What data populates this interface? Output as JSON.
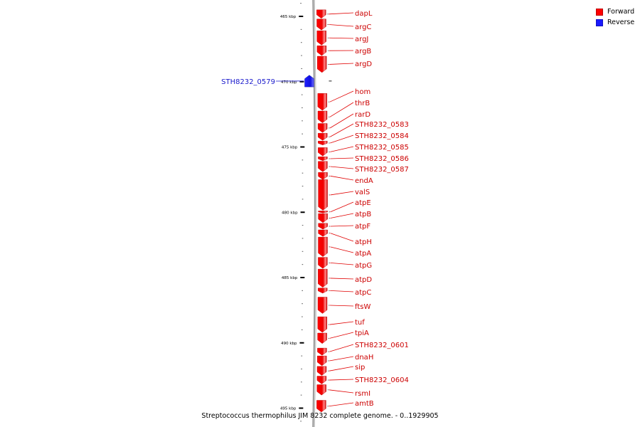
{
  "legend": {
    "forward_label": "Forward",
    "reverse_label": "Reverse",
    "forward_color": "#ff0000",
    "reverse_color": "#1a1aff"
  },
  "caption": "Streptococcus thermophilus JIM 8232 complete genome. - 0..1929905",
  "colors": {
    "label": "#cc0000",
    "reverse_label": "#1a1acc",
    "backbone": "#9a9a9a"
  },
  "ticks": {
    "major_labels": [
      "465 kbp",
      "470 kbp",
      "475 kbp",
      "480 kbp",
      "485 kbp",
      "490 kbp",
      "495 kbp"
    ],
    "major_values": [
      465,
      470,
      475,
      480,
      485,
      490,
      495
    ]
  },
  "genes": [
    {
      "name": "dapL",
      "strand": "forward",
      "start": 464.5,
      "end": 465.15
    },
    {
      "name": "argC",
      "strand": "forward",
      "start": 465.2,
      "end": 466.05
    },
    {
      "name": "argJ",
      "strand": "forward",
      "start": 466.1,
      "end": 467.2
    },
    {
      "name": "argB",
      "strand": "forward",
      "start": 467.25,
      "end": 468.0
    },
    {
      "name": "argD",
      "strand": "forward",
      "start": 468.05,
      "end": 469.3
    },
    {
      "name": "STH8232_0579",
      "strand": "reverse",
      "start": 469.5,
      "end": 470.4
    },
    {
      "name": "hom",
      "strand": "forward",
      "start": 470.9,
      "end": 472.2
    },
    {
      "name": "thrB",
      "strand": "forward",
      "start": 472.25,
      "end": 473.15
    },
    {
      "name": "rarD",
      "strand": "forward",
      "start": 473.2,
      "end": 473.9
    },
    {
      "name": "STH8232_0583",
      "strand": "forward",
      "start": 473.95,
      "end": 474.5
    },
    {
      "name": "STH8232_0584",
      "strand": "forward",
      "start": 474.55,
      "end": 474.85
    },
    {
      "name": "STH8232_0585",
      "strand": "forward",
      "start": 475.05,
      "end": 475.7
    },
    {
      "name": "STH8232_0586",
      "strand": "forward",
      "start": 475.75,
      "end": 476.05
    },
    {
      "name": "STH8232_0587",
      "strand": "forward",
      "start": 476.1,
      "end": 476.9
    },
    {
      "name": "endA",
      "strand": "forward",
      "start": 476.95,
      "end": 477.5
    },
    {
      "name": "valS",
      "strand": "forward",
      "start": 477.5,
      "end": 479.85
    },
    {
      "name": "atpE",
      "strand": "forward",
      "start": 479.9,
      "end": 480.05
    },
    {
      "name": "atpB",
      "strand": "forward",
      "start": 480.1,
      "end": 480.8
    },
    {
      "name": "atpF",
      "strand": "forward",
      "start": 480.85,
      "end": 481.3
    },
    {
      "name": "atpH",
      "strand": "forward",
      "start": 481.35,
      "end": 481.85
    },
    {
      "name": "atpA",
      "strand": "forward",
      "start": 481.9,
      "end": 483.4
    },
    {
      "name": "atpG",
      "strand": "forward",
      "start": 483.45,
      "end": 484.3
    },
    {
      "name": "atpD",
      "strand": "forward",
      "start": 484.35,
      "end": 485.75
    },
    {
      "name": "atpC",
      "strand": "forward",
      "start": 485.8,
      "end": 486.2
    },
    {
      "name": "ftsW",
      "strand": "forward",
      "start": 486.5,
      "end": 487.75
    },
    {
      "name": "tuf",
      "strand": "forward",
      "start": 488.0,
      "end": 489.2
    },
    {
      "name": "tpiA",
      "strand": "forward",
      "start": 489.25,
      "end": 490.05
    },
    {
      "name": "STH8232_0601",
      "strand": "forward",
      "start": 490.4,
      "end": 490.95
    },
    {
      "name": "dnaH",
      "strand": "forward",
      "start": 491.0,
      "end": 491.75
    },
    {
      "name": "sip",
      "strand": "forward",
      "start": 491.8,
      "end": 492.5
    },
    {
      "name": "STH8232_0604",
      "strand": "forward",
      "start": 492.55,
      "end": 493.15
    },
    {
      "name": "rsmI",
      "strand": "forward",
      "start": 493.2,
      "end": 494.0
    },
    {
      "name": "amtB",
      "strand": "forward",
      "start": 494.4,
      "end": 495.3
    }
  ],
  "label_anchors": [
    18,
    37,
    54,
    71,
    89,
    114,
    128,
    144,
    160,
    174,
    190,
    206,
    222,
    237,
    253,
    269,
    284,
    300,
    317,
    339,
    355,
    372,
    392,
    410,
    430,
    452,
    467,
    484,
    501,
    515,
    533,
    552,
    566
  ]
}
